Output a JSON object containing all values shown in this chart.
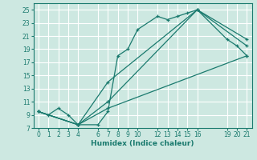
{
  "title": "",
  "xlabel": "Humidex (Indice chaleur)",
  "bg_color": "#cde8e1",
  "grid_color": "#ffffff",
  "line_color": "#1a7a6e",
  "xlim": [
    -0.5,
    21.5
  ],
  "ylim": [
    7,
    26
  ],
  "xticks": [
    0,
    1,
    2,
    3,
    4,
    6,
    7,
    8,
    9,
    10,
    12,
    13,
    14,
    15,
    16,
    19,
    20,
    21
  ],
  "yticks": [
    7,
    9,
    11,
    13,
    15,
    17,
    19,
    21,
    23,
    25
  ],
  "series": [
    {
      "x": [
        0,
        1,
        2,
        3,
        4,
        6,
        7,
        8,
        9,
        10,
        12,
        13,
        14,
        15,
        16,
        19,
        20,
        21
      ],
      "y": [
        9.5,
        9.0,
        10.0,
        9.0,
        7.5,
        7.5,
        9.5,
        18.0,
        19.0,
        22.0,
        24.0,
        23.5,
        24.0,
        24.5,
        25.0,
        20.5,
        19.5,
        18.0
      ]
    },
    {
      "x": [
        0,
        4,
        7,
        16,
        21
      ],
      "y": [
        9.5,
        7.5,
        14.0,
        25.0,
        20.5
      ]
    },
    {
      "x": [
        0,
        4,
        7,
        16,
        21
      ],
      "y": [
        9.5,
        7.5,
        11.0,
        25.0,
        19.5
      ]
    },
    {
      "x": [
        0,
        4,
        7,
        21
      ],
      "y": [
        9.5,
        7.5,
        10.0,
        18.0
      ]
    }
  ]
}
